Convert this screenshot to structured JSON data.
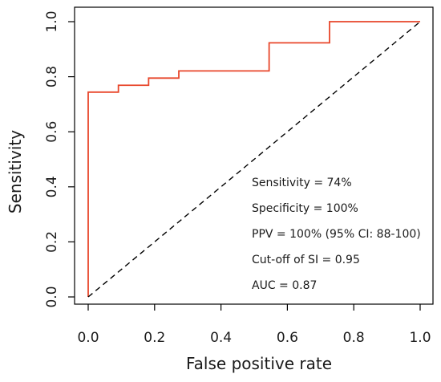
{
  "chart_data": {
    "type": "line",
    "title": "",
    "xlabel": "False positive rate",
    "ylabel": "Sensitivity",
    "xlim": [
      0,
      1
    ],
    "ylim": [
      0,
      1
    ],
    "x_ticks": [
      "0.0",
      "0.2",
      "0.4",
      "0.6",
      "0.8",
      "1.0"
    ],
    "y_ticks": [
      "0.0",
      "0.2",
      "0.4",
      "0.6",
      "0.8",
      "1.0"
    ],
    "grid": false,
    "legend": "none",
    "series": [
      {
        "color": "#e8462a",
        "style": "step",
        "x": [
          0.0,
          0.0,
          0.0,
          0.091,
          0.091,
          0.182,
          0.182,
          0.273,
          0.273,
          0.545,
          0.545,
          0.727,
          0.727,
          1.0
        ],
        "y": [
          0.0,
          0.0,
          0.744,
          0.744,
          0.769,
          0.769,
          0.795,
          0.795,
          0.821,
          0.821,
          0.923,
          0.923,
          1.0,
          1.0
        ]
      },
      {
        "color": "#000000",
        "style": "dashed",
        "x": [
          0,
          1
        ],
        "y": [
          0,
          1
        ]
      }
    ],
    "annotations": [
      "Sensitivity = 74%",
      "Specificity = 100%",
      "PPV = 100% (95% CI: 88-100)",
      "Cut-off of SI = 0.95",
      "AUC = 0.87"
    ]
  }
}
